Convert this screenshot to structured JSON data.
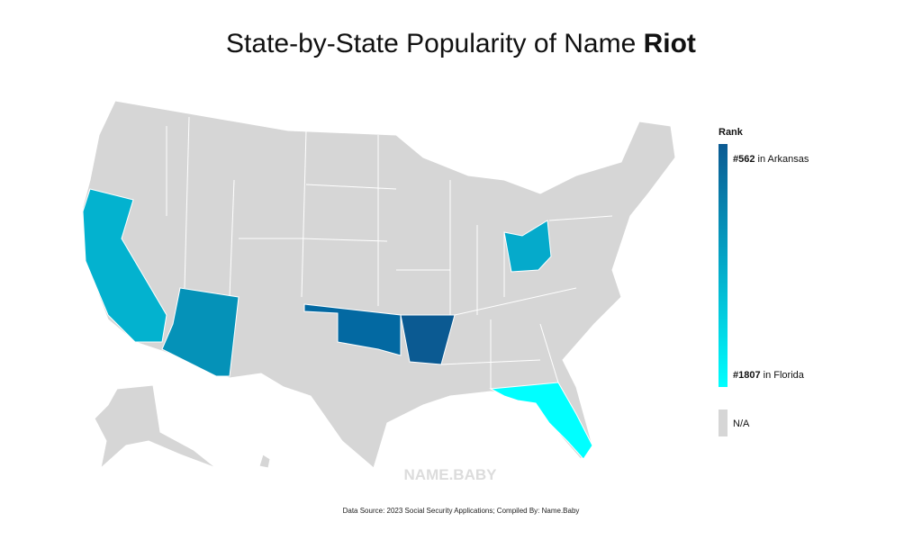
{
  "title": {
    "text": "State-by-State Popularity of Name",
    "name": "Riot"
  },
  "legend": {
    "title": "Rank",
    "top": {
      "rank": "#562",
      "label": "in Arkansas"
    },
    "bottom": {
      "rank": "#1807",
      "label": "in Florida"
    },
    "na": "N/A"
  },
  "watermark": "NAME.BABY",
  "source": "Data Source: 2023 Social Security Applications; Compiled By: Name.Baby"
}
